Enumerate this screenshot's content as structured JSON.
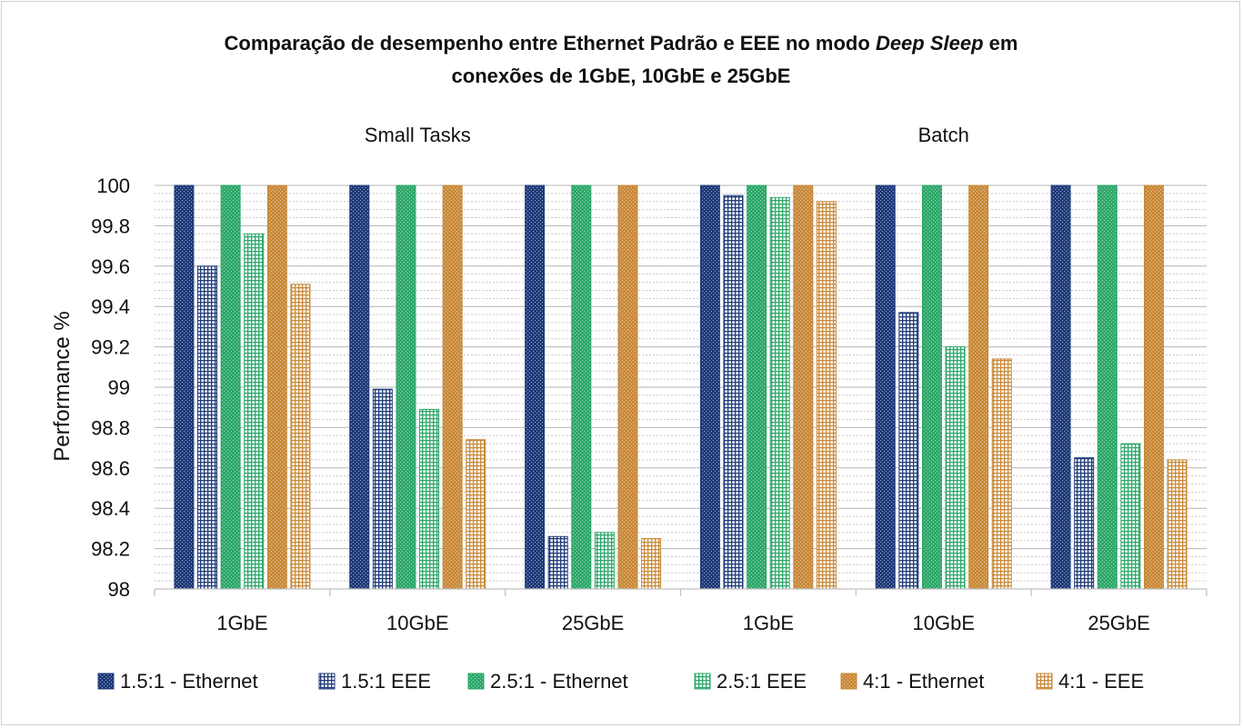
{
  "chart_data": {
    "type": "bar",
    "title_line1_start": "Comparação de desempenho entre Ethernet Padrão e EEE no modo",
    "title_line1_italic": "Deep Sleep",
    "title_line1_end": "em",
    "title_line2": "conexões de 1GbE, 10GbE e 25GbE",
    "ylabel": "Performance %",
    "xlabel": "",
    "ylim": [
      98,
      100
    ],
    "yticks": [
      "98",
      "98.2",
      "98.4",
      "98.6",
      "98.8",
      "99",
      "99.2",
      "99.4",
      "99.6",
      "99.8",
      "100"
    ],
    "groups": [
      "Small Tasks",
      "Batch"
    ],
    "categories": [
      "1GbE",
      "10GbE",
      "25GbE",
      "1GbE",
      "10GbE",
      "25GbE"
    ],
    "legend_position": "bottom",
    "grid": true,
    "series": [
      {
        "name": "1.5:1 - Ethernet",
        "color": "#1f3b7a",
        "pattern": "dots",
        "values": [
          100,
          100,
          100,
          100,
          100,
          100
        ]
      },
      {
        "name": "1.5:1 EEE",
        "color": "#1f3b7a",
        "pattern": "grid",
        "values": [
          99.6,
          98.99,
          98.26,
          99.95,
          99.37,
          98.65
        ]
      },
      {
        "name": "2.5:1 - Ethernet",
        "color": "#2ea86a",
        "pattern": "dots",
        "values": [
          100,
          100,
          100,
          100,
          100,
          100
        ]
      },
      {
        "name": "2.5:1 EEE",
        "color": "#2ea86a",
        "pattern": "grid",
        "values": [
          99.76,
          98.89,
          98.28,
          99.94,
          99.2,
          98.72
        ]
      },
      {
        "name": "4:1 - Ethernet",
        "color": "#c98a3a",
        "pattern": "dots",
        "values": [
          100,
          100,
          100,
          100,
          100,
          100
        ]
      },
      {
        "name": "4:1 - EEE",
        "color": "#c98a3a",
        "pattern": "grid",
        "values": [
          99.51,
          98.74,
          98.25,
          99.92,
          99.14,
          98.64
        ]
      }
    ]
  }
}
